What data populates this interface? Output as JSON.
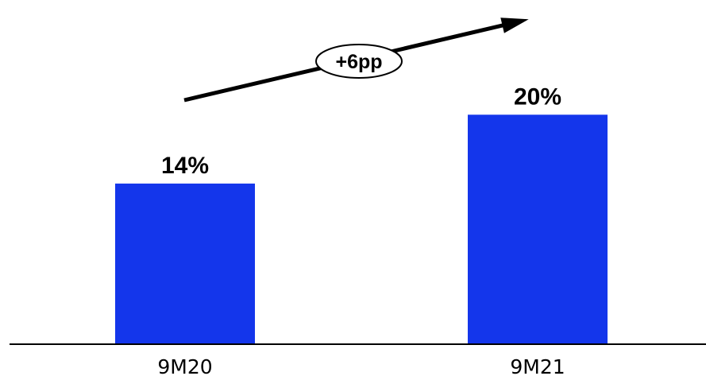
{
  "chart_data": {
    "type": "bar",
    "categories": [
      "9M20",
      "9M21"
    ],
    "values": [
      14,
      20
    ],
    "value_labels": [
      "14%",
      "20%"
    ],
    "title": "",
    "xlabel": "",
    "ylabel": "",
    "ylim": [
      0,
      23
    ],
    "grid": false,
    "legend": "none",
    "bar_color": "#1436EB",
    "axis_color": "#000000",
    "annotation": {
      "text": "+6pp",
      "type": "arrow",
      "direction": "increase"
    }
  }
}
